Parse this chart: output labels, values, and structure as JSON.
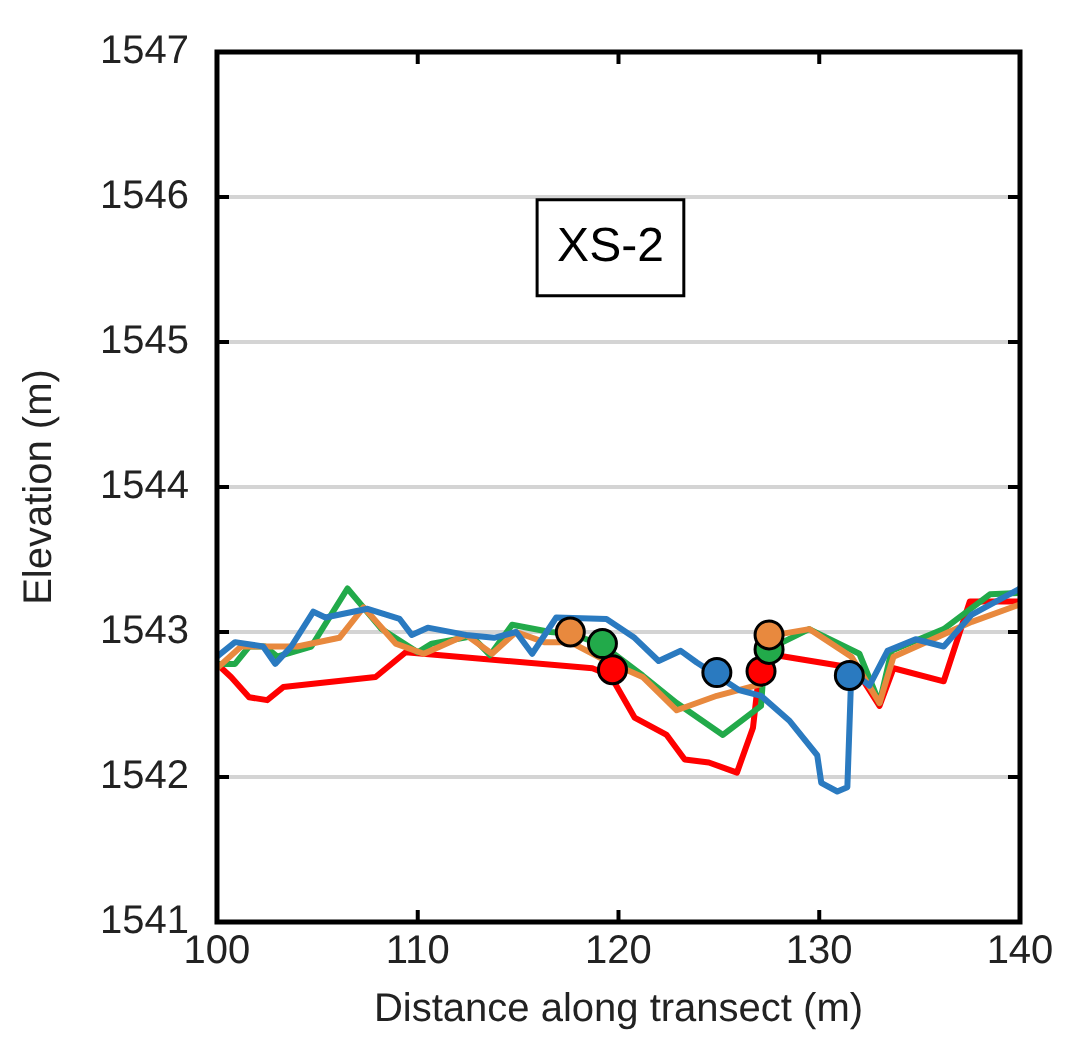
{
  "chart_data": {
    "type": "line",
    "xlabel": "Distance along transect (m)",
    "ylabel": "Elevation (m)",
    "annotations": [
      "XS-2"
    ],
    "xlim": [
      100,
      140
    ],
    "xticks": [
      100,
      110,
      120,
      130,
      140
    ],
    "ylim": [
      1541,
      1547
    ],
    "yticks": [
      1541,
      1542,
      1543,
      1544,
      1545,
      1546,
      1547
    ],
    "grid": "y",
    "legend": false,
    "series": [
      {
        "type": "line",
        "color": "#2a7ac0",
        "x": [
          100,
          100.9,
          102.3,
          102.9,
          103.7,
          104.8,
          105.4,
          107.5,
          109.1,
          109.7,
          110.5,
          112.4,
          113.8,
          114.9,
          115.7,
          116.9,
          119.4,
          120.8,
          122.0,
          123.1,
          123.9,
          124.9,
          126,
          127.1,
          128.5,
          129.9,
          130.1,
          130.9,
          131.4,
          131.6,
          132.5,
          133.4,
          134.8,
          136.2,
          137.6,
          140
        ],
        "values": [
          1542.83,
          1542.93,
          1542.9,
          1542.78,
          1542.9,
          1543.14,
          1543.1,
          1543.16,
          1543.09,
          1542.98,
          1543.03,
          1542.98,
          1542.96,
          1543.0,
          1542.85,
          1543.1,
          1543.09,
          1542.96,
          1542.8,
          1542.87,
          1542.79,
          1542.7,
          1542.6,
          1542.56,
          1542.39,
          1542.15,
          1541.96,
          1541.9,
          1541.93,
          1542.73,
          1542.63,
          1542.87,
          1542.95,
          1542.9,
          1543.12,
          1543.3
        ]
      },
      {
        "type": "line",
        "color": "#e8893e",
        "x": [
          100,
          101.2,
          104,
          106.1,
          107.3,
          108.9,
          110.3,
          112.4,
          113.7,
          114.9,
          116.3,
          117.6,
          119.4,
          121.2,
          122.9,
          124.9,
          127.1,
          127.4,
          129.5,
          131.6,
          133,
          133.7,
          137.6,
          140
        ],
        "values": [
          1542.75,
          1542.9,
          1542.9,
          1542.96,
          1543.17,
          1542.92,
          1542.85,
          1542.98,
          1542.85,
          1543.0,
          1542.93,
          1542.93,
          1542.8,
          1542.69,
          1542.46,
          1542.56,
          1542.64,
          1542.97,
          1543.02,
          1542.83,
          1542.51,
          1542.83,
          1543.07,
          1543.19
        ]
      },
      {
        "type": "line",
        "color": "#22aa4a",
        "x": [
          100,
          100.9,
          101.6,
          102.4,
          103,
          104.7,
          106.5,
          108.2,
          110,
          110.7,
          112.7,
          113.6,
          114.7,
          116.6,
          117.6,
          119.2,
          121.2,
          122.9,
          125.2,
          127.1,
          127.3,
          129.5,
          132,
          133,
          133.6,
          136.2,
          138.5,
          140
        ],
        "values": [
          1542.78,
          1542.78,
          1542.9,
          1542.9,
          1542.83,
          1542.9,
          1543.3,
          1543.02,
          1542.86,
          1542.92,
          1542.97,
          1542.84,
          1543.05,
          1543.0,
          1542.99,
          1542.91,
          1542.7,
          1542.51,
          1542.29,
          1542.49,
          1542.87,
          1543.02,
          1542.85,
          1542.51,
          1542.87,
          1543.02,
          1543.26,
          1543.27
        ]
      },
      {
        "type": "line",
        "color": "#ff0000",
        "x": [
          100,
          100.7,
          101.6,
          102.5,
          103.3,
          107.9,
          109.4,
          118.7,
          119.6,
          120.8,
          122.4,
          123.3,
          124.5,
          125.9,
          126.7,
          127.1,
          127.4,
          131.8,
          133,
          133.7,
          136.2,
          137.5,
          140
        ],
        "values": [
          1542.78,
          1542.69,
          1542.55,
          1542.53,
          1542.62,
          1542.69,
          1542.86,
          1542.75,
          1542.7,
          1542.41,
          1542.29,
          1542.12,
          1542.1,
          1542.03,
          1542.34,
          1542.83,
          1542.85,
          1542.75,
          1542.49,
          1542.75,
          1542.66,
          1543.21,
          1543.21
        ]
      },
      {
        "type": "scatter",
        "marker": "circle",
        "color": "#e8893e",
        "x": [
          117.6,
          127.5
        ],
        "values": [
          1543.0,
          1542.98
        ]
      },
      {
        "type": "scatter",
        "marker": "circle",
        "color": "#22aa4a",
        "x": [
          119.2,
          127.5
        ],
        "values": [
          1542.92,
          1542.88
        ]
      },
      {
        "type": "scatter",
        "marker": "circle",
        "color": "#ff0000",
        "x": [
          119.7,
          127.1
        ],
        "values": [
          1542.74,
          1542.73
        ]
      },
      {
        "type": "scatter",
        "marker": "circle",
        "color": "#2a7ac0",
        "x": [
          124.9,
          131.5
        ],
        "values": [
          1542.72,
          1542.7
        ]
      }
    ]
  }
}
